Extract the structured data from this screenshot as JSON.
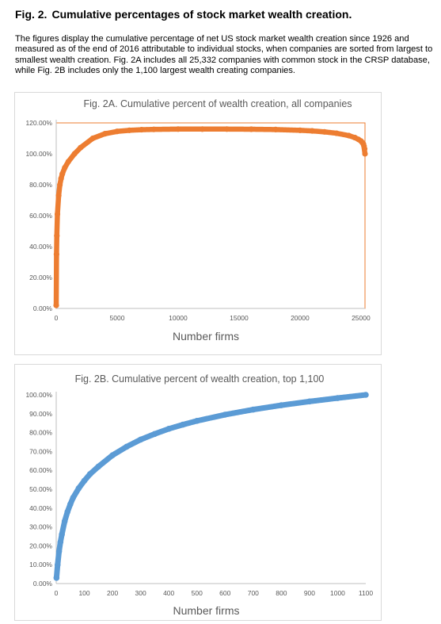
{
  "header": {
    "fig_label": "Fig. 2.",
    "title": "Cumulative percentages of stock market wealth creation."
  },
  "caption": "The figures display the cumulative percentage of net US stock market wealth creation since 1926 and measured as of the end of 2016 attributable to individual stocks, when companies are sorted from largest to smallest wealth creation.   Fig. 2A includes all 25,332 companies with common stock in the CRSP database, while Fig. 2B includes only the 1,100 largest wealth creating companies.",
  "chart_data": [
    {
      "type": "scatter",
      "title": "Fig. 2A. Cumulative percent of wealth creation, all companies",
      "xlabel": "Number firms",
      "ylabel": "",
      "xlim": [
        0,
        25332
      ],
      "ylim": [
        0,
        120
      ],
      "x_ticks": [
        0,
        5000,
        10000,
        15000,
        20000,
        25000
      ],
      "y_ticks": [
        0,
        20,
        40,
        60,
        80,
        100,
        120
      ],
      "y_tick_labels": [
        "0.00%",
        "20.00%",
        "40.00%",
        "60.00%",
        "80.00%",
        "100.00%",
        "120.00%"
      ],
      "grid": false,
      "color": "#ED7D31",
      "series": [
        {
          "x": [
            1,
            25,
            50,
            100,
            200,
            300,
            400,
            500,
            700,
            1000,
            1500,
            2000,
            3000,
            4000,
            5000,
            6000,
            7000,
            8000,
            10000,
            12000,
            14000,
            16000,
            18000,
            20000,
            21000,
            22000,
            23000,
            24000,
            24500,
            24800,
            25000,
            25100,
            25200,
            25250,
            25300,
            25332
          ],
          "y": [
            2,
            35,
            47,
            61,
            73,
            80,
            84,
            87,
            91,
            95,
            100,
            104,
            110,
            113,
            114.5,
            115.2,
            115.6,
            115.8,
            116,
            116,
            116,
            115.9,
            115.7,
            115.2,
            114.8,
            114.2,
            113.3,
            111.8,
            110.5,
            109.3,
            108.3,
            107.4,
            106.3,
            105,
            103.2,
            100
          ]
        }
      ]
    },
    {
      "type": "scatter",
      "title": "Fig. 2B. Cumulative percent of wealth creation, top 1,100",
      "xlabel": "Number firms",
      "ylabel": "",
      "xlim": [
        0,
        1100
      ],
      "ylim": [
        0,
        100
      ],
      "x_ticks": [
        0,
        100,
        200,
        300,
        400,
        500,
        600,
        700,
        800,
        900,
        1000,
        1100
      ],
      "y_ticks": [
        0,
        10,
        20,
        30,
        40,
        50,
        60,
        70,
        80,
        90,
        100
      ],
      "y_tick_labels": [
        "0.00%",
        "10.00%",
        "20.00%",
        "30.00%",
        "40.00%",
        "50.00%",
        "60.00%",
        "70.00%",
        "80.00%",
        "90.00%",
        "100.00%"
      ],
      "grid": false,
      "color": "#5B9BD5",
      "series": [
        {
          "x": [
            1,
            5,
            10,
            15,
            20,
            30,
            40,
            50,
            60,
            80,
            100,
            120,
            150,
            200,
            250,
            300,
            350,
            400,
            450,
            500,
            600,
            700,
            800,
            900,
            1000,
            1100
          ],
          "y": [
            3,
            10,
            17,
            22,
            26,
            33,
            38,
            42,
            45.5,
            50.5,
            54.5,
            58,
            62,
            68,
            72.5,
            76.3,
            79.3,
            82,
            84.2,
            86.2,
            89.5,
            92.2,
            94.5,
            96.5,
            98.3,
            100
          ]
        }
      ]
    }
  ]
}
